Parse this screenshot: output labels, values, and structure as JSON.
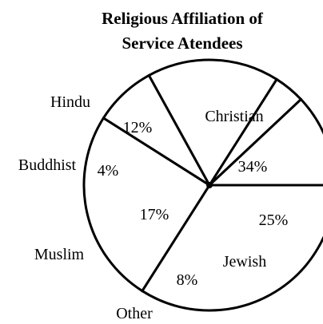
{
  "chart_data": {
    "type": "pie",
    "title_lines": [
      "Religious Affiliation of",
      "Service Atendees"
    ],
    "slices": [
      {
        "label": "Christian",
        "value": 34,
        "value_label": "34%"
      },
      {
        "label": "Jewish",
        "value": 25,
        "value_label": "25%"
      },
      {
        "label": "Other",
        "value": 8,
        "value_label": "8%"
      },
      {
        "label": "Muslim",
        "value": 17,
        "value_label": "17%"
      },
      {
        "label": "Buddhist",
        "value": 4,
        "value_label": "4%"
      },
      {
        "label": "Hindu",
        "value": 12,
        "value_label": "12%"
      }
    ],
    "colors": {
      "fill": "#ffffff",
      "stroke": "#000000"
    }
  }
}
